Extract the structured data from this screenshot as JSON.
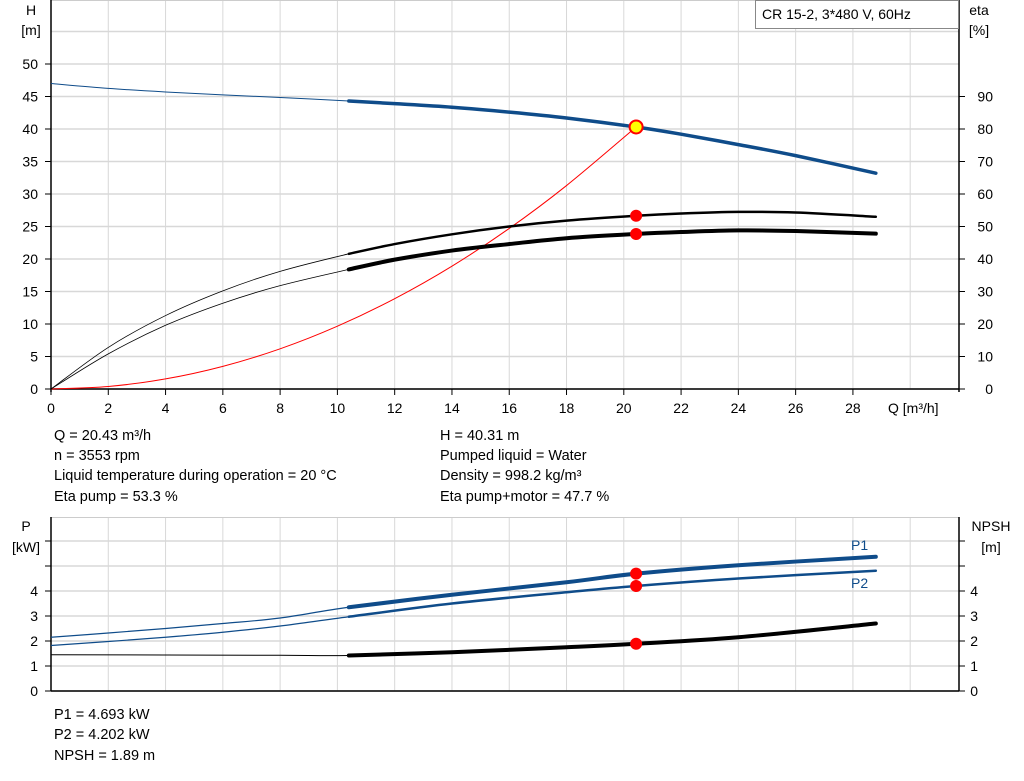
{
  "chart_data": [
    {
      "type": "line",
      "legend_box": "CR 15-2, 3*480 V, 60Hz",
      "xlabel": "Q [m³/h]",
      "ylabel_left": [
        "H",
        "[m]"
      ],
      "ylabel_right": [
        "eta",
        "[%]"
      ],
      "xlim": [
        0,
        31.5
      ],
      "ylim_left": [
        0,
        60
      ],
      "ylim_right": [
        0,
        120
      ],
      "x_ticks": [
        "0",
        "2",
        "4",
        "6",
        "8",
        "10",
        "12",
        "14",
        "16",
        "18",
        "20",
        "22",
        "24",
        "26",
        "28"
      ],
      "y_ticks_left": [
        "0",
        "5",
        "10",
        "15",
        "20",
        "25",
        "30",
        "35",
        "40",
        "45",
        "50"
      ],
      "y_ticks_right": [
        "0",
        "10",
        "20",
        "30",
        "40",
        "50",
        "60",
        "70",
        "80",
        "90"
      ],
      "grid": true,
      "operating_range_from_q": 10.4,
      "series": [
        {
          "axis": "left",
          "color": "#0f4c8a",
          "x": [
            0,
            2,
            4,
            6,
            8,
            10.4,
            12,
            14,
            16,
            18,
            20.43,
            22,
            24,
            26,
            28.8
          ],
          "y": [
            47,
            46.25,
            45.7,
            45.25,
            44.85,
            44.3,
            43.9,
            43.35,
            42.6,
            41.7,
            40.31,
            39.2,
            37.6,
            35.9,
            33.2
          ]
        },
        {
          "axis": "right",
          "color": "#000000",
          "x": [
            0,
            2,
            4,
            6,
            8,
            10.4,
            12,
            14,
            16,
            18,
            20.43,
            22,
            24,
            26,
            28.8
          ],
          "y": [
            0,
            12.8,
            22.6,
            30.2,
            36.2,
            41.6,
            44.6,
            47.6,
            50,
            51.8,
            53.3,
            54,
            54.5,
            54.3,
            53
          ]
        },
        {
          "axis": "right",
          "color": "#000000",
          "x": [
            0,
            2,
            4,
            6,
            8,
            10.4,
            12,
            14,
            16,
            18,
            20.43,
            22,
            24,
            26,
            28.8
          ],
          "y": [
            0,
            10.8,
            19.6,
            26.4,
            31.8,
            36.8,
            39.8,
            42.6,
            44.6,
            46.4,
            47.7,
            48.3,
            48.8,
            48.6,
            47.8
          ]
        },
        {
          "axis": "left",
          "color": "#ff0000",
          "x": [
            0,
            2,
            4,
            6,
            8,
            10,
            12,
            14,
            16,
            18,
            20.43
          ],
          "y": [
            0,
            0.39,
            1.55,
            3.48,
            6.18,
            9.66,
            13.9,
            18.9,
            24.7,
            31.3,
            40.31
          ]
        }
      ],
      "operating_points": [
        {
          "q": 20.43,
          "h": 40.31,
          "style": "yellow"
        },
        {
          "q": 20.43,
          "eta": 53.3
        },
        {
          "q": 20.43,
          "eta": 47.7
        }
      ]
    },
    {
      "type": "line",
      "ylabel_left": [
        "P",
        "[kW]"
      ],
      "ylabel_right": [
        "NPSH",
        "[m]"
      ],
      "xlim": [
        0,
        31.5
      ],
      "ylim": [
        0,
        7
      ],
      "y_ticks_left": [
        "0",
        "1",
        "2",
        "3",
        "4",
        "",
        ""
      ],
      "y_ticks_right": [
        "0",
        "1",
        "2",
        "3",
        "4",
        "",
        ""
      ],
      "grid": true,
      "series": [
        {
          "name": "P1",
          "color": "#0f4c8a",
          "x": [
            0,
            2,
            4,
            6,
            8,
            10.4,
            14,
            18,
            20.43,
            24,
            28.8
          ],
          "y": [
            2.15,
            2.32,
            2.5,
            2.7,
            2.92,
            3.35,
            3.85,
            4.35,
            4.693,
            5.03,
            5.37
          ]
        },
        {
          "name": "P2",
          "color": "#0f4c8a",
          "x": [
            0,
            2,
            4,
            6,
            8,
            10.4,
            14,
            18,
            20.43,
            24,
            28.8
          ],
          "y": [
            1.82,
            1.98,
            2.15,
            2.35,
            2.6,
            2.97,
            3.5,
            3.95,
            4.202,
            4.5,
            4.81
          ]
        },
        {
          "color": "#000000",
          "x": [
            0,
            4,
            8,
            10.4,
            14,
            18,
            20.43,
            24,
            28.8
          ],
          "y": [
            1.45,
            1.44,
            1.43,
            1.42,
            1.55,
            1.75,
            1.89,
            2.15,
            2.7
          ]
        }
      ],
      "operating_points": [
        {
          "q": 20.43,
          "p": 4.693
        },
        {
          "q": 20.43,
          "p": 4.202
        },
        {
          "q": 20.43,
          "npsh": 1.89
        }
      ]
    }
  ],
  "info": {
    "q": "Q = 20.43 m³/h",
    "n": "n = 3553 rpm",
    "temp": "Liquid temperature during operation = 20 °C",
    "eta_pump": "Eta pump = 53.3 %",
    "h": "H = 40.31 m",
    "liquid": "Pumped liquid = Water",
    "density": "Density = 998.2 kg/m³",
    "eta_total": "Eta pump+motor = 47.7 %",
    "p1": "P1 = 4.693 kW",
    "p2": "P2 = 4.202 kW",
    "npsh": "NPSH = 1.89 m"
  }
}
